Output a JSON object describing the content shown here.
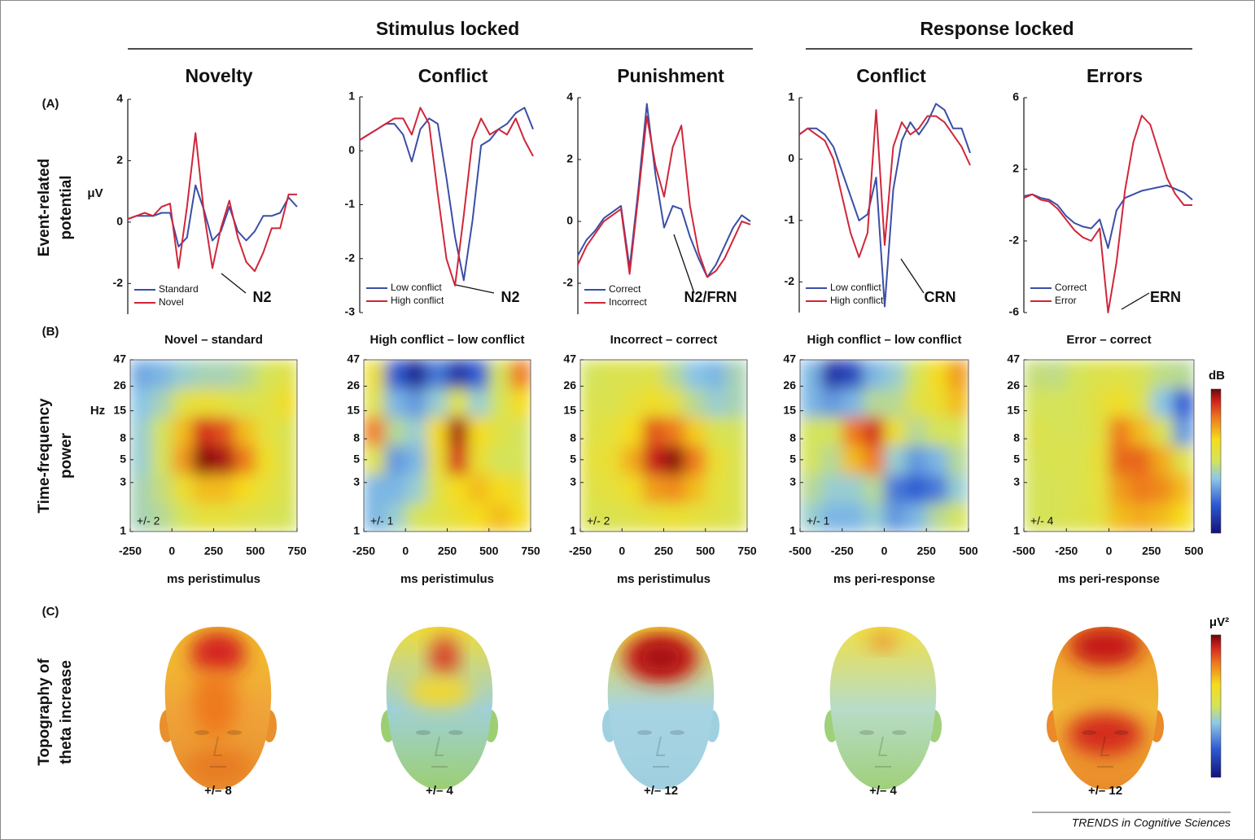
{
  "section_titles": [
    "Stimulus locked",
    "Response locked"
  ],
  "row_labels": [
    {
      "letter": "(A)",
      "lines": [
        "Event-related",
        "potential"
      ]
    },
    {
      "letter": "(B)",
      "lines": [
        "Time-frequency",
        "power"
      ]
    },
    {
      "letter": "(C)",
      "lines": [
        "Topography of",
        "theta increase"
      ]
    }
  ],
  "colorbar_labels": {
    "tf": "dB",
    "topo": "μV²"
  },
  "credit": "TRENDS in Cognitive Sciences",
  "topographies": [
    {
      "scale_label": "+/– 8"
    },
    {
      "scale_label": "+/– 4"
    },
    {
      "scale_label": "+/– 12"
    },
    {
      "scale_label": "+/– 4"
    },
    {
      "scale_label": "+/– 12"
    }
  ],
  "chart_data": [
    {
      "type": "line",
      "title": "Novelty",
      "ylabel": "μV",
      "annotation": "N2",
      "legend": "lower left",
      "xlim": [
        -250,
        750
      ],
      "ylim": [
        -3,
        4
      ],
      "yticks": [
        -2,
        0,
        2,
        4
      ],
      "x": [
        -250,
        -200,
        -150,
        -100,
        -50,
        0,
        50,
        100,
        150,
        200,
        250,
        300,
        350,
        400,
        450,
        500,
        550,
        600,
        650,
        700,
        750
      ],
      "series": [
        {
          "name": "Standard",
          "color": "#3a4ea6",
          "values": [
            0.1,
            0.2,
            0.2,
            0.2,
            0.3,
            0.3,
            -0.8,
            -0.5,
            1.2,
            0.4,
            -0.6,
            -0.3,
            0.5,
            -0.3,
            -0.6,
            -0.3,
            0.2,
            0.2,
            0.3,
            0.8,
            0.5
          ]
        },
        {
          "name": "Novel",
          "color": "#d0263a",
          "values": [
            0.1,
            0.2,
            0.3,
            0.2,
            0.5,
            0.6,
            -1.5,
            0.5,
            2.9,
            0.3,
            -1.5,
            -0.2,
            0.7,
            -0.5,
            -1.3,
            -1.6,
            -1.0,
            -0.2,
            -0.2,
            0.9,
            0.9
          ]
        }
      ]
    },
    {
      "type": "line",
      "title": "Conflict",
      "annotation": "N2",
      "legend": "lower left",
      "xlim": [
        -250,
        750
      ],
      "ylim": [
        -3,
        1
      ],
      "yticks": [
        -3,
        -2,
        -1,
        0,
        1
      ],
      "x": [
        -250,
        -200,
        -150,
        -100,
        -50,
        0,
        50,
        100,
        150,
        200,
        250,
        300,
        350,
        400,
        450,
        500,
        550,
        600,
        650,
        700,
        750
      ],
      "series": [
        {
          "name": "Low conflict",
          "color": "#3a4ea6",
          "values": [
            0.2,
            0.3,
            0.4,
            0.5,
            0.5,
            0.3,
            -0.2,
            0.4,
            0.6,
            0.5,
            -0.5,
            -1.6,
            -2.4,
            -1.3,
            0.1,
            0.2,
            0.4,
            0.5,
            0.7,
            0.8,
            0.4
          ]
        },
        {
          "name": "High conflict",
          "color": "#d0263a",
          "values": [
            0.2,
            0.3,
            0.4,
            0.5,
            0.6,
            0.6,
            0.3,
            0.8,
            0.5,
            -0.8,
            -2.0,
            -2.5,
            -1.2,
            0.2,
            0.6,
            0.3,
            0.4,
            0.3,
            0.6,
            0.2,
            -0.1
          ]
        }
      ]
    },
    {
      "type": "line",
      "title": "Punishment",
      "annotation": "N2/FRN",
      "legend": "lower left",
      "xlim": [
        -250,
        750
      ],
      "ylim": [
        -3,
        4
      ],
      "yticks": [
        -2,
        0,
        2,
        4
      ],
      "x": [
        -250,
        -200,
        -150,
        -100,
        -50,
        0,
        50,
        100,
        150,
        200,
        250,
        300,
        350,
        400,
        450,
        500,
        550,
        600,
        650,
        700,
        750
      ],
      "series": [
        {
          "name": "Correct",
          "color": "#3a4ea6",
          "values": [
            -1.1,
            -0.6,
            -0.3,
            0.1,
            0.3,
            0.5,
            -1.5,
            1.0,
            3.8,
            1.5,
            -0.2,
            0.5,
            0.4,
            -0.5,
            -1.2,
            -1.8,
            -1.4,
            -0.8,
            -0.2,
            0.2,
            0.0
          ]
        },
        {
          "name": "Incorrect",
          "color": "#d0263a",
          "values": [
            -1.4,
            -0.8,
            -0.4,
            0,
            0.2,
            0.4,
            -1.7,
            0.8,
            3.4,
            1.8,
            0.8,
            2.4,
            3.1,
            0.5,
            -1.0,
            -1.8,
            -1.6,
            -1.2,
            -0.6,
            0,
            -0.1
          ]
        }
      ]
    },
    {
      "type": "line",
      "title": "Conflict",
      "annotation": "CRN",
      "legend": "lower left",
      "xlim": [
        -500,
        500
      ],
      "ylim": [
        -2.5,
        1
      ],
      "yticks": [
        -2,
        -1,
        0,
        1
      ],
      "x": [
        -500,
        -450,
        -400,
        -350,
        -300,
        -250,
        -200,
        -150,
        -100,
        -50,
        0,
        50,
        100,
        150,
        200,
        250,
        300,
        350,
        400,
        450,
        500
      ],
      "series": [
        {
          "name": "Low conflict",
          "color": "#3a4ea6",
          "values": [
            0.4,
            0.5,
            0.5,
            0.4,
            0.2,
            -0.2,
            -0.6,
            -1.0,
            -0.9,
            -0.3,
            -2.4,
            -0.5,
            0.3,
            0.6,
            0.4,
            0.6,
            0.9,
            0.8,
            0.5,
            0.5,
            0.1
          ]
        },
        {
          "name": "High conflict",
          "color": "#d0263a",
          "values": [
            0.4,
            0.5,
            0.4,
            0.3,
            0.0,
            -0.6,
            -1.2,
            -1.6,
            -1.2,
            0.8,
            -1.4,
            0.2,
            0.6,
            0.4,
            0.5,
            0.7,
            0.7,
            0.6,
            0.4,
            0.2,
            -0.1
          ]
        }
      ]
    },
    {
      "type": "line",
      "title": "Errors",
      "annotation": "ERN",
      "legend": "lower left",
      "xlim": [
        -500,
        500
      ],
      "ylim": [
        -6,
        6
      ],
      "yticks": [
        -6,
        -2,
        2,
        6
      ],
      "x": [
        -500,
        -450,
        -400,
        -350,
        -300,
        -250,
        -200,
        -150,
        -100,
        -50,
        0,
        50,
        100,
        150,
        200,
        250,
        300,
        350,
        400,
        450,
        500
      ],
      "series": [
        {
          "name": "Correct",
          "color": "#3a4ea6",
          "values": [
            0.5,
            0.6,
            0.4,
            0.3,
            0,
            -0.6,
            -1.0,
            -1.2,
            -1.3,
            -0.8,
            -2.4,
            -0.3,
            0.4,
            0.6,
            0.8,
            0.9,
            1.0,
            1.1,
            0.9,
            0.7,
            0.3
          ]
        },
        {
          "name": "Error",
          "color": "#d0263a",
          "values": [
            0.4,
            0.6,
            0.3,
            0.2,
            -0.2,
            -0.8,
            -1.4,
            -1.8,
            -2.0,
            -1.3,
            -6.0,
            -3.2,
            0.8,
            3.5,
            5.0,
            4.5,
            3.0,
            1.5,
            0.6,
            0.0,
            0.0
          ]
        }
      ]
    },
    {
      "type": "heatmap",
      "title": "Novel – standard",
      "xlabel": "ms peristimulus",
      "ylabel": "Hz",
      "xlim": [
        -250,
        750
      ],
      "xticks": [
        -250,
        0,
        250,
        500,
        750
      ],
      "ylim": [
        1,
        47
      ],
      "yticks": [
        1,
        3,
        5,
        8,
        15,
        26,
        47
      ],
      "log_y": true,
      "clim": [
        -2,
        2
      ],
      "clim_label": "+/- 2",
      "times": [
        -187.5,
        -62.5,
        62.5,
        187.5,
        312.5,
        437.5,
        562.5,
        687.5
      ],
      "freqs": [
        1.4,
        2.6,
        5,
        9.5,
        18,
        34
      ],
      "z": [
        [
          -0.3,
          -0.2,
          0,
          0.3,
          0.3,
          0.2,
          0.1,
          0
        ],
        [
          -0.3,
          -0.1,
          0.4,
          0.8,
          0.8,
          0.6,
          0.3,
          0.1
        ],
        [
          -0.4,
          0,
          1.0,
          1.9,
          1.8,
          1.2,
          0.5,
          0.1
        ],
        [
          -0.4,
          0,
          0.8,
          1.6,
          1.4,
          0.8,
          0.3,
          0.1
        ],
        [
          -0.5,
          -0.3,
          0.2,
          0.4,
          0.3,
          0.1,
          0.2,
          0.5
        ],
        [
          -0.7,
          -0.6,
          -0.4,
          -0.3,
          -0.3,
          -0.2,
          0,
          0.2
        ]
      ]
    },
    {
      "type": "heatmap",
      "title": "High conflict – low conflict",
      "xlabel": "ms peristimulus",
      "xlim": [
        -250,
        750
      ],
      "xticks": [
        -250,
        0,
        250,
        500,
        750
      ],
      "ylim": [
        1,
        47
      ],
      "yticks": [
        1,
        3,
        5,
        8,
        15,
        26,
        47
      ],
      "log_y": true,
      "clim": [
        -1,
        1
      ],
      "clim_label": "+/- 1",
      "times": [
        -187.5,
        -62.5,
        62.5,
        187.5,
        312.5,
        437.5,
        562.5,
        687.5
      ],
      "freqs": [
        1.4,
        2.6,
        5,
        9.5,
        18,
        34
      ],
      "z": [
        [
          -0.3,
          -0.2,
          0,
          0.1,
          0.2,
          0.3,
          0.4,
          0.3
        ],
        [
          -0.3,
          -0.3,
          -0.2,
          0.1,
          0.3,
          0.4,
          0.3,
          0.2
        ],
        [
          0.1,
          -0.4,
          -0.3,
          0.2,
          0.8,
          0.2,
          0,
          0
        ],
        [
          0.6,
          -0.1,
          -0.2,
          0.3,
          0.9,
          0.3,
          0.1,
          0
        ],
        [
          0.1,
          -0.3,
          -0.4,
          -0.2,
          0.1,
          -0.2,
          0,
          0.3
        ],
        [
          0.2,
          -0.6,
          -0.9,
          -0.5,
          -0.8,
          -0.6,
          0,
          0.6
        ]
      ]
    },
    {
      "type": "heatmap",
      "title": "Incorrect – correct",
      "xlabel": "ms peristimulus",
      "xlim": [
        -250,
        750
      ],
      "xticks": [
        -250,
        0,
        250,
        500,
        750
      ],
      "ylim": [
        1,
        47
      ],
      "yticks": [
        1,
        3,
        5,
        8,
        15,
        26,
        47
      ],
      "log_y": true,
      "clim": [
        -2,
        2
      ],
      "clim_label": "+/- 2",
      "times": [
        -187.5,
        -62.5,
        62.5,
        187.5,
        312.5,
        437.5,
        562.5,
        687.5
      ],
      "freqs": [
        1.4,
        2.6,
        5,
        9.5,
        18,
        34
      ],
      "z": [
        [
          0.1,
          0.1,
          0.2,
          0.3,
          0.4,
          0.3,
          0.2,
          0.1
        ],
        [
          0.2,
          0.3,
          0.5,
          1.0,
          1.1,
          0.8,
          0.3,
          0.1
        ],
        [
          0.3,
          0.4,
          0.9,
          1.7,
          1.9,
          1.2,
          0.4,
          0.1
        ],
        [
          0.2,
          0.3,
          0.6,
          1.4,
          1.2,
          0.7,
          0.1,
          0
        ],
        [
          0.1,
          0.1,
          0.3,
          0.5,
          0.3,
          -0.2,
          -0.4,
          -0.3
        ],
        [
          0,
          0.1,
          0.1,
          0.2,
          -0.2,
          -0.5,
          -0.6,
          -0.3
        ]
      ]
    },
    {
      "type": "heatmap",
      "title": "High conflict – low conflict",
      "xlabel": "ms peri-response",
      "xlim": [
        -500,
        500
      ],
      "xticks": [
        -500,
        -250,
        0,
        250,
        500
      ],
      "ylim": [
        1,
        47
      ],
      "yticks": [
        1,
        3,
        5,
        8,
        15,
        26,
        47
      ],
      "log_y": true,
      "clim": [
        -1,
        1
      ],
      "clim_label": "+/- 1",
      "times": [
        -437.5,
        -312.5,
        -187.5,
        -62.5,
        62.5,
        187.5,
        312.5,
        437.5
      ],
      "freqs": [
        1.4,
        2.6,
        5,
        9.5,
        18,
        34
      ],
      "z": [
        [
          -0.2,
          -0.3,
          -0.3,
          -0.2,
          -0.4,
          -0.3,
          -0.1,
          0
        ],
        [
          -0.1,
          -0.2,
          -0.2,
          -0.1,
          -0.5,
          -0.6,
          -0.5,
          -0.2
        ],
        [
          0,
          -0.1,
          0.4,
          0.6,
          -0.2,
          -0.4,
          -0.3,
          -0.1
        ],
        [
          0,
          0,
          0.6,
          0.8,
          0.2,
          -0.1,
          0,
          0
        ],
        [
          -0.3,
          -0.4,
          -0.3,
          -0.1,
          -0.1,
          0.1,
          0.2,
          0.4
        ],
        [
          -0.3,
          -0.8,
          -0.7,
          -0.3,
          -0.2,
          0,
          0.3,
          0.5
        ]
      ]
    },
    {
      "type": "heatmap",
      "title": "Error – correct",
      "xlabel": "ms peri-response",
      "xlim": [
        -500,
        500
      ],
      "xticks": [
        -500,
        -250,
        0,
        250,
        500
      ],
      "ylim": [
        1,
        47
      ],
      "yticks": [
        1,
        3,
        5,
        8,
        15,
        26,
        47
      ],
      "log_y": true,
      "clim": [
        -4,
        4
      ],
      "clim_label": "+/- 4",
      "times": [
        -437.5,
        -312.5,
        -187.5,
        -62.5,
        62.5,
        187.5,
        312.5,
        437.5
      ],
      "freqs": [
        1.4,
        2.6,
        5,
        9.5,
        18,
        34
      ],
      "z": [
        [
          0,
          0.1,
          0.3,
          0.5,
          1.6,
          1.8,
          1.6,
          1.2
        ],
        [
          0,
          0.1,
          0.2,
          0.6,
          2.0,
          2.4,
          2.2,
          1.6
        ],
        [
          0.1,
          0.2,
          0.2,
          0.7,
          2.6,
          2.6,
          1.8,
          0.4
        ],
        [
          0.3,
          0.1,
          0.1,
          0.5,
          2.4,
          1.6,
          0.2,
          -1.6
        ],
        [
          0,
          0,
          0.1,
          0.5,
          1.0,
          0.3,
          -1.0,
          -2.4
        ],
        [
          -0.2,
          -0.3,
          0,
          0.3,
          0.4,
          0.1,
          -0.3,
          -0.4
        ]
      ]
    }
  ]
}
